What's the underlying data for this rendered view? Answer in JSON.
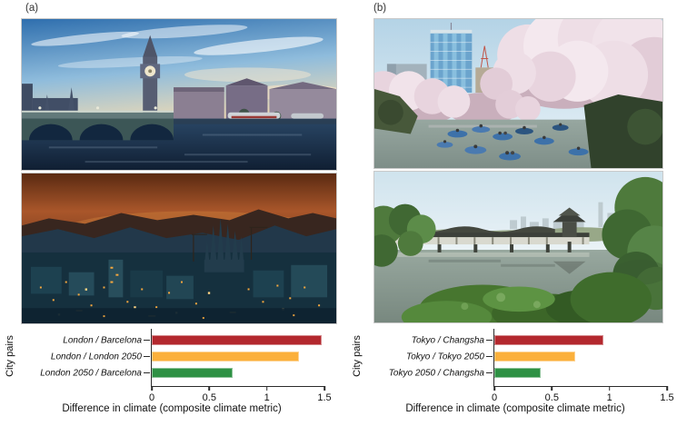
{
  "figure": {
    "panels": [
      {
        "label": "(a)",
        "photos": [
          {
            "subject": "London - Big Ben and Westminster Bridge on the River Thames"
          },
          {
            "subject": "Barcelona - city skyline at dusk with the Sagrada Familia"
          }
        ]
      },
      {
        "label": "(b)",
        "photos": [
          {
            "subject": "Tokyo - cherry blossoms over a moat with rowing boats and skyline"
          },
          {
            "subject": "Changsha - lakeside covered pavilion corridor with gardens"
          }
        ]
      }
    ]
  },
  "chart_data": [
    {
      "type": "bar",
      "orientation": "horizontal",
      "categories": [
        "London / Barcelona",
        "London / London 2050",
        "London 2050 / Barcelona"
      ],
      "values": [
        1.48,
        1.28,
        0.7
      ],
      "bar_colors": [
        "#b3282e",
        "#fbb03b",
        "#2e9144"
      ],
      "xlabel": "Difference in climate (composite climate metric)",
      "ylabel": "City pairs",
      "xlim": [
        0,
        1.5
      ],
      "xticks": [
        0,
        0.5,
        1,
        1.5
      ],
      "xtick_labels": [
        "0",
        "0.5",
        "1",
        "1.5"
      ],
      "grid": false,
      "legend": false
    },
    {
      "type": "bar",
      "orientation": "horizontal",
      "categories": [
        "Tokyo / Changsha",
        "Tokyo / Tokyo 2050",
        "Tokyo 2050 / Changsha"
      ],
      "values": [
        0.95,
        0.7,
        0.4
      ],
      "bar_colors": [
        "#b3282e",
        "#fbb03b",
        "#2e9144"
      ],
      "xlabel": "Difference in climate (composite climate metric)",
      "ylabel": "City pairs",
      "xlim": [
        0,
        1.5
      ],
      "xticks": [
        0,
        0.5,
        1,
        1.5
      ],
      "xtick_labels": [
        "0",
        "0.5",
        "1",
        "1.5"
      ],
      "grid": false,
      "legend": false
    }
  ]
}
